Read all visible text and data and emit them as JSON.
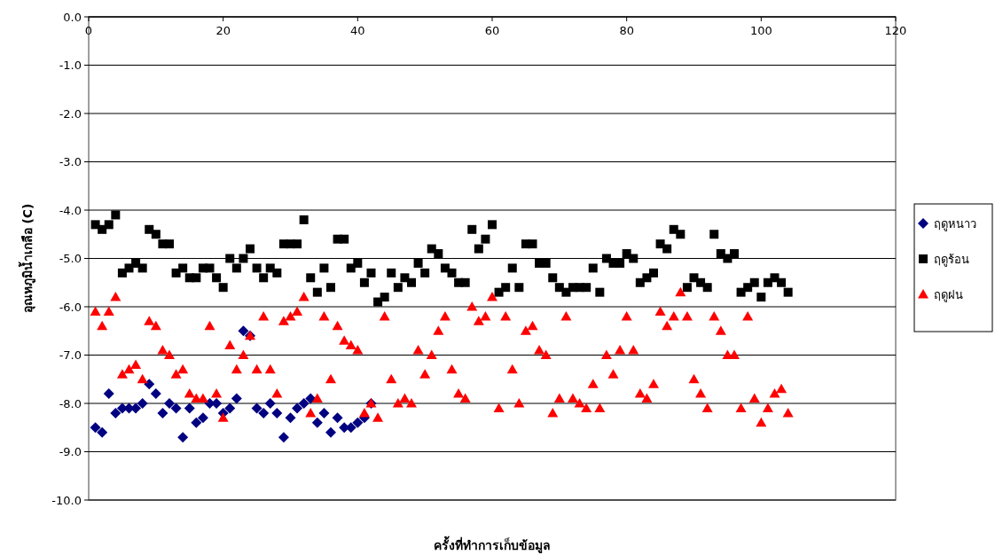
{
  "chart_data": {
    "type": "scatter",
    "xlabel": "ครั้งที่ทำการเก็บข้อมูล",
    "ylabel": "อุณหภูมิน้ำเกลือ (C)",
    "x": [
      1,
      2,
      3,
      4,
      5,
      6,
      7,
      8,
      9,
      10,
      11,
      12,
      13,
      14,
      15,
      16,
      17,
      18,
      19,
      20,
      21,
      22,
      23,
      24,
      25,
      26,
      27,
      28,
      29,
      30,
      31,
      32,
      33,
      34,
      35,
      36,
      37,
      38,
      39,
      40,
      41,
      42,
      43,
      44,
      45,
      46,
      47,
      48,
      49,
      50,
      51,
      52,
      53,
      54,
      55,
      56,
      57,
      58,
      59,
      60,
      61,
      62,
      63,
      64,
      65,
      66,
      67,
      68,
      69,
      70,
      71,
      72,
      73,
      74,
      75,
      76,
      77,
      78,
      79,
      80,
      81,
      82,
      83,
      84,
      85,
      86,
      87,
      88,
      89,
      90,
      91,
      92,
      93,
      94,
      95,
      96,
      97,
      98,
      99,
      100,
      101,
      102,
      103,
      104
    ],
    "series": [
      {
        "name": "ฤดูหนาว",
        "color": "#000080",
        "marker": "diamond",
        "x": [
          1,
          2,
          3,
          4,
          5,
          6,
          7,
          8,
          9,
          10,
          11,
          12,
          13,
          14,
          15,
          16,
          17,
          18,
          19,
          20,
          21,
          22,
          23,
          24,
          25,
          26,
          27,
          28,
          29,
          30,
          31,
          32,
          33,
          34,
          35,
          36,
          37,
          38,
          39,
          40,
          41,
          42
        ],
        "values": [
          -8.5,
          -8.6,
          -7.8,
          -8.2,
          -8.1,
          -8.1,
          -8.1,
          -8.0,
          -7.6,
          -7.8,
          -8.2,
          -8.0,
          -8.1,
          -8.7,
          -8.1,
          -8.4,
          -8.3,
          -8.0,
          -8.0,
          -8.2,
          -8.1,
          -7.9,
          -6.5,
          -6.6,
          -8.1,
          -8.2,
          -8.0,
          -8.2,
          -8.7,
          -8.3,
          -8.1,
          -8.0,
          -7.9,
          -8.4,
          -8.2,
          -8.6,
          -8.3,
          -8.5,
          -8.5,
          -8.4,
          -8.3,
          -8.0
        ]
      },
      {
        "name": "ฤดูร้อน",
        "color": "#000000",
        "marker": "square",
        "values": [
          -4.3,
          -4.4,
          -4.3,
          -4.1,
          -5.3,
          -5.2,
          -5.1,
          -5.2,
          -4.4,
          -4.5,
          -4.7,
          -4.7,
          -5.3,
          -5.2,
          -5.4,
          -5.4,
          -5.2,
          -5.2,
          -5.4,
          -5.6,
          -5.0,
          -5.2,
          -5.0,
          -4.8,
          -5.2,
          -5.4,
          -5.2,
          -5.3,
          -4.7,
          -4.7,
          -4.7,
          -4.2,
          -5.4,
          -5.7,
          -5.2,
          -5.6,
          -4.6,
          -4.6,
          -5.2,
          -5.1,
          -5.5,
          -5.3,
          -5.9,
          -5.8,
          -5.3,
          -5.6,
          -5.4,
          -5.5,
          -5.1,
          -5.3,
          -4.8,
          -4.9,
          -5.2,
          -5.3,
          -5.5,
          -5.5,
          -4.4,
          -4.8,
          -4.6,
          -4.3,
          -5.7,
          -5.6,
          -5.2,
          -5.6,
          -4.7,
          -4.7,
          -5.1,
          -5.1,
          -5.4,
          -5.6,
          -5.7,
          -5.6,
          -5.6,
          -5.6,
          -5.2,
          -5.7,
          -5.0,
          -5.1,
          -5.1,
          -4.9,
          -5.0,
          -5.5,
          -5.4,
          -5.3,
          -4.7,
          -4.8,
          -4.4,
          -4.5,
          -5.6,
          -5.4,
          -5.5,
          -5.6,
          -4.5,
          -4.9,
          -5.0,
          -4.9,
          -5.7,
          -5.6,
          -5.5,
          -5.8,
          -5.5,
          -5.4,
          -5.5,
          -5.7
        ]
      },
      {
        "name": "ฤดูฝน",
        "color": "#ff0000",
        "marker": "triangle",
        "values": [
          -6.1,
          -6.4,
          -6.1,
          -5.8,
          -7.4,
          -7.3,
          -7.2,
          -7.5,
          -6.3,
          -6.4,
          -6.9,
          -7.0,
          -7.4,
          -7.3,
          -7.8,
          -7.9,
          -7.9,
          -6.4,
          -7.8,
          -8.3,
          -6.8,
          -7.3,
          -7.0,
          -6.6,
          -7.3,
          -6.2,
          -7.3,
          -7.8,
          -6.3,
          -6.2,
          -6.1,
          -5.8,
          -8.2,
          -7.9,
          -6.2,
          -7.5,
          -6.4,
          -6.7,
          -6.8,
          -6.9,
          -8.2,
          -8.0,
          -8.3,
          -6.2,
          -7.5,
          -8.0,
          -7.9,
          -8.0,
          -6.9,
          -7.4,
          -7.0,
          -6.5,
          -6.2,
          -7.3,
          -7.8,
          -7.9,
          -6.0,
          -6.3,
          -6.2,
          -5.8,
          -8.1,
          -6.2,
          -7.3,
          -8.0,
          -6.5,
          -6.4,
          -6.9,
          -7.0,
          -8.2,
          -7.9,
          -6.2,
          -7.9,
          -8.0,
          -8.1,
          -7.6,
          -8.1,
          -7.0,
          -7.4,
          -6.9,
          -6.2,
          -6.9,
          -7.8,
          -7.9,
          -7.6,
          -6.1,
          -6.4,
          -6.2,
          -5.7,
          -6.2,
          -7.5,
          -7.8,
          -8.1,
          -6.2,
          -6.5,
          -7.0,
          -7.0,
          -8.1,
          -6.2,
          -7.9,
          -8.4,
          -8.1,
          -7.8,
          -7.7,
          -8.2
        ]
      }
    ],
    "xlim": [
      0,
      120
    ],
    "xticks": [
      0,
      20,
      40,
      60,
      80,
      100,
      120
    ],
    "ylim": [
      -10,
      0
    ],
    "yticks": [
      {
        "value": 0,
        "label": "0.0"
      },
      {
        "value": -1,
        "label": "-1.0"
      },
      {
        "value": -2,
        "label": "-2.0"
      },
      {
        "value": -3,
        "label": "-3.0"
      },
      {
        "value": -4,
        "label": "-4.0"
      },
      {
        "value": -5,
        "label": "-5.0"
      },
      {
        "value": -6,
        "label": "-6.0"
      },
      {
        "value": -7,
        "label": "-7.0"
      },
      {
        "value": -8,
        "label": "-8.0"
      },
      {
        "value": -9,
        "label": "-9.0"
      },
      {
        "value": -10,
        "label": "-10.0"
      }
    ],
    "grid": "y",
    "legend": "right"
  }
}
